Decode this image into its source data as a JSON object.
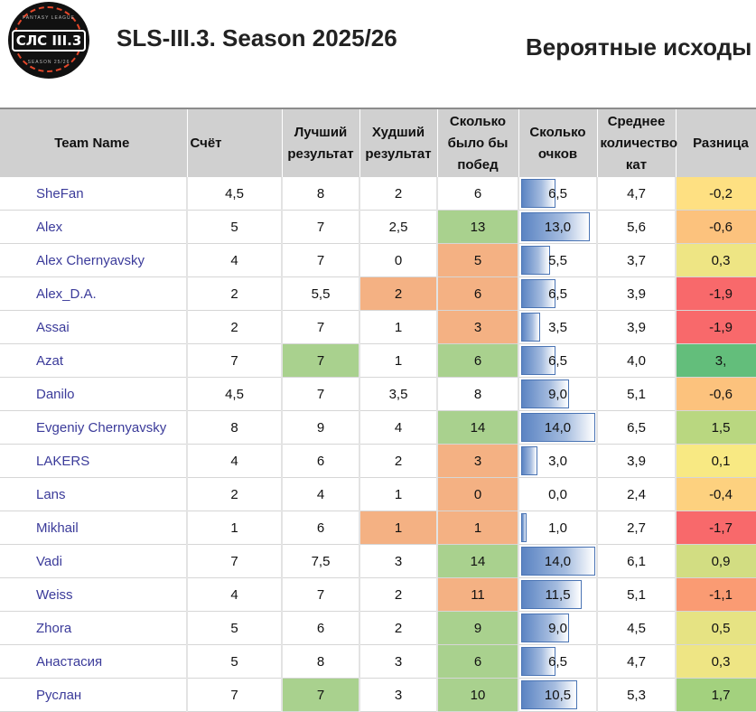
{
  "header": {
    "logo_text": "СЛС III.3",
    "logo_small_top": "FANTASY LEAGUE",
    "logo_small_bottom": "SEASON 25/26",
    "season_title": "SLS-III.3. Season 2025/26",
    "forecast_title": "Вероятные исходы"
  },
  "columns": [
    "Team Name",
    "Счёт",
    "Лучший результат",
    "Худший результат",
    "Сколько было бы побед",
    "Сколько очков",
    "Среднее количество кат",
    "Разница"
  ],
  "colors": {
    "green": "#a9d18e",
    "orange": "#f4b183",
    "bar": "#5b84c3",
    "diff_red": "#f8696b",
    "diff_orange": "#fbac78",
    "diff_peach": "#fcc27d",
    "diff_yellow": "#fee082",
    "diff_lightyellow": "#f5e784",
    "diff_yellowgreen": "#e3e383",
    "diff_lightgreen": "#b9d780",
    "diff_green": "#94cc7d",
    "diff_darkgreen": "#63be7b"
  },
  "rows": [
    {
      "team": "SheFan",
      "score": "4,5",
      "best": "8",
      "worst": "2",
      "wins": "6",
      "points": "6,5",
      "points_num": 6.5,
      "avg": "4,7",
      "diff": "-0,2",
      "best_bg": "",
      "worst_bg": "",
      "wins_bg": "",
      "diff_bg": "#fee082"
    },
    {
      "team": "Alex",
      "score": "5",
      "best": "7",
      "worst": "2,5",
      "wins": "13",
      "points": "13,0",
      "points_num": 13.0,
      "avg": "5,6",
      "diff": "-0,6",
      "best_bg": "",
      "worst_bg": "",
      "wins_bg": "#a9d18e",
      "diff_bg": "#fcc27d"
    },
    {
      "team": "Alex Chernyavsky",
      "score": "4",
      "best": "7",
      "worst": "0",
      "wins": "5",
      "points": "5,5",
      "points_num": 5.5,
      "avg": "3,7",
      "diff": "0,3",
      "best_bg": "",
      "worst_bg": "",
      "wins_bg": "#f4b183",
      "diff_bg": "#eee584"
    },
    {
      "team": "Alex_D.A.",
      "score": "2",
      "best": "5,5",
      "worst": "2",
      "wins": "6",
      "points": "6,5",
      "points_num": 6.5,
      "avg": "3,9",
      "diff": "-1,9",
      "best_bg": "",
      "worst_bg": "#f4b183",
      "wins_bg": "#f4b183",
      "diff_bg": "#f8696b"
    },
    {
      "team": "Assai",
      "score": "2",
      "best": "7",
      "worst": "1",
      "wins": "3",
      "points": "3,5",
      "points_num": 3.5,
      "avg": "3,9",
      "diff": "-1,9",
      "best_bg": "",
      "worst_bg": "",
      "wins_bg": "#f4b183",
      "diff_bg": "#f8696b"
    },
    {
      "team": "Azat",
      "score": "7",
      "best": "7",
      "worst": "1",
      "wins": "6",
      "points": "6,5",
      "points_num": 6.5,
      "avg": "4,0",
      "diff": "3,",
      "best_bg": "#a9d18e",
      "worst_bg": "",
      "wins_bg": "#a9d18e",
      "diff_bg": "#63be7b"
    },
    {
      "team": "Danilo",
      "score": "4,5",
      "best": "7",
      "worst": "3,5",
      "wins": "8",
      "points": "9,0",
      "points_num": 9.0,
      "avg": "5,1",
      "diff": "-0,6",
      "best_bg": "",
      "worst_bg": "",
      "wins_bg": "",
      "diff_bg": "#fcc27d"
    },
    {
      "team": "Evgeniy Chernyavsky",
      "score": "8",
      "best": "9",
      "worst": "4",
      "wins": "14",
      "points": "14,0",
      "points_num": 14.0,
      "avg": "6,5",
      "diff": "1,5",
      "best_bg": "",
      "worst_bg": "",
      "wins_bg": "#a9d18e",
      "diff_bg": "#b9d780"
    },
    {
      "team": "LAKERS",
      "score": "4",
      "best": "6",
      "worst": "2",
      "wins": "3",
      "points": "3,0",
      "points_num": 3.0,
      "avg": "3,9",
      "diff": "0,1",
      "best_bg": "",
      "worst_bg": "",
      "wins_bg": "#f4b183",
      "diff_bg": "#f8e983"
    },
    {
      "team": "Lans",
      "score": "2",
      "best": "4",
      "worst": "1",
      "wins": "0",
      "points": "0,0",
      "points_num": 0.0,
      "avg": "2,4",
      "diff": "-0,4",
      "best_bg": "",
      "worst_bg": "",
      "wins_bg": "#f4b183",
      "diff_bg": "#fdd17f"
    },
    {
      "team": "Mikhail",
      "score": "1",
      "best": "6",
      "worst": "1",
      "wins": "1",
      "points": "1,0",
      "points_num": 1.0,
      "avg": "2,7",
      "diff": "-1,7",
      "best_bg": "",
      "worst_bg": "#f4b183",
      "wins_bg": "#f4b183",
      "diff_bg": "#f8696b"
    },
    {
      "team": "Vadi",
      "score": "7",
      "best": "7,5",
      "worst": "3",
      "wins": "14",
      "points": "14,0",
      "points_num": 14.0,
      "avg": "6,1",
      "diff": "0,9",
      "best_bg": "",
      "worst_bg": "",
      "wins_bg": "#a9d18e",
      "diff_bg": "#d2dd82"
    },
    {
      "team": "Weiss",
      "score": "4",
      "best": "7",
      "worst": "2",
      "wins": "11",
      "points": "11,5",
      "points_num": 11.5,
      "avg": "5,1",
      "diff": "-1,1",
      "best_bg": "",
      "worst_bg": "",
      "wins_bg": "#f4b183",
      "diff_bg": "#fa9b73"
    },
    {
      "team": "Zhora",
      "score": "5",
      "best": "6",
      "worst": "2",
      "wins": "9",
      "points": "9,0",
      "points_num": 9.0,
      "avg": "4,5",
      "diff": "0,5",
      "best_bg": "",
      "worst_bg": "",
      "wins_bg": "#a9d18e",
      "diff_bg": "#e6e383"
    },
    {
      "team": "Анастасия",
      "score": "5",
      "best": "8",
      "worst": "3",
      "wins": "6",
      "points": "6,5",
      "points_num": 6.5,
      "avg": "4,7",
      "diff": "0,3",
      "best_bg": "",
      "worst_bg": "",
      "wins_bg": "#a9d18e",
      "diff_bg": "#eee584"
    },
    {
      "team": "Руслан",
      "score": "7",
      "best": "7",
      "worst": "3",
      "wins": "10",
      "points": "10,5",
      "points_num": 10.5,
      "avg": "5,3",
      "diff": "1,7",
      "best_bg": "#a9d18e",
      "worst_bg": "",
      "wins_bg": "#a9d18e",
      "diff_bg": "#a3d17e"
    }
  ]
}
